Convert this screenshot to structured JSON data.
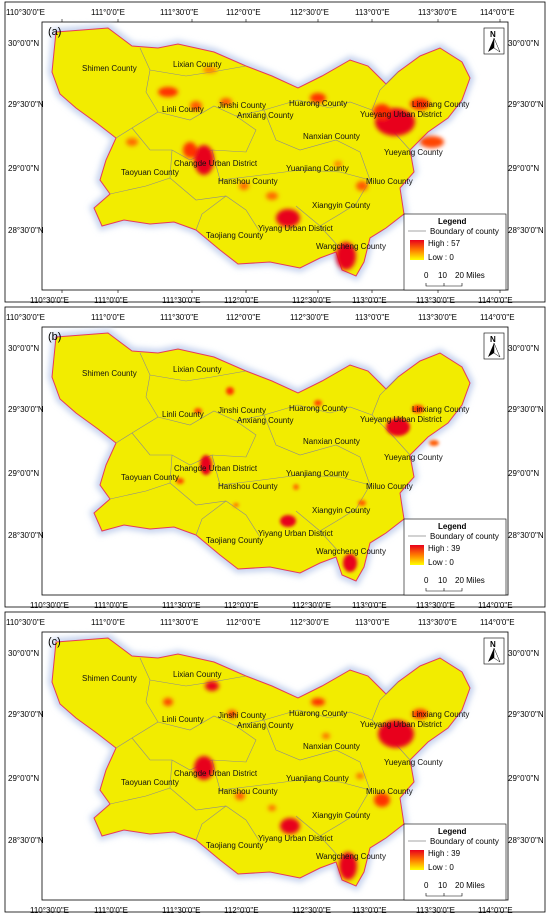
{
  "ticks": {
    "top": [
      "110°30'0\"E",
      "111°0'0\"E",
      "111°30'0\"E",
      "112°0'0\"E",
      "112°30'0\"E",
      "113°0'0\"E",
      "113°30'0\"E",
      "114°0'0\"E"
    ],
    "left": [
      "30°0'0\"N",
      "29°30'0\"N",
      "29°0'0\"N",
      "28°30'0\"N"
    ],
    "right": [
      "30°0'0\"N",
      "29°30'0\"N",
      "29°0'0\"N",
      "28°30'0\"N"
    ]
  },
  "counties": [
    {
      "name": "Shimen County"
    },
    {
      "name": "Lixian County"
    },
    {
      "name": "Linli County"
    },
    {
      "name": "Jinshi County"
    },
    {
      "name": "Anxiang County"
    },
    {
      "name": "Huarong County"
    },
    {
      "name": "Nanxian County"
    },
    {
      "name": "Yueyang Urban District"
    },
    {
      "name": "Linxiang County"
    },
    {
      "name": "Yueyang County"
    },
    {
      "name": "Changde Urban District"
    },
    {
      "name": "Taoyuan County"
    },
    {
      "name": "Hanshou County"
    },
    {
      "name": "Yuanjiang County"
    },
    {
      "name": "Miluo County"
    },
    {
      "name": "Xiangyin County"
    },
    {
      "name": "Yiyang Urban District"
    },
    {
      "name": "Taojiang County"
    },
    {
      "name": "Wangcheng County"
    }
  ],
  "north_label": "N",
  "legend": {
    "title": "Legend",
    "boundary_label": "Boundary of county",
    "low_label": "Low : 0",
    "scale_labels": [
      "0",
      "10",
      "20 Miles"
    ],
    "colors": {
      "high": "#e8001c",
      "low": "#ffff00",
      "boundary": "#888888",
      "land": "#f2ec00",
      "halo": "#c7d4ef"
    }
  },
  "panels": [
    {
      "label": "(a)",
      "high_label": "High : 57"
    },
    {
      "label": "(b)",
      "high_label": "High : 39"
    },
    {
      "label": "(c)",
      "high_label": "High : 39"
    }
  ]
}
